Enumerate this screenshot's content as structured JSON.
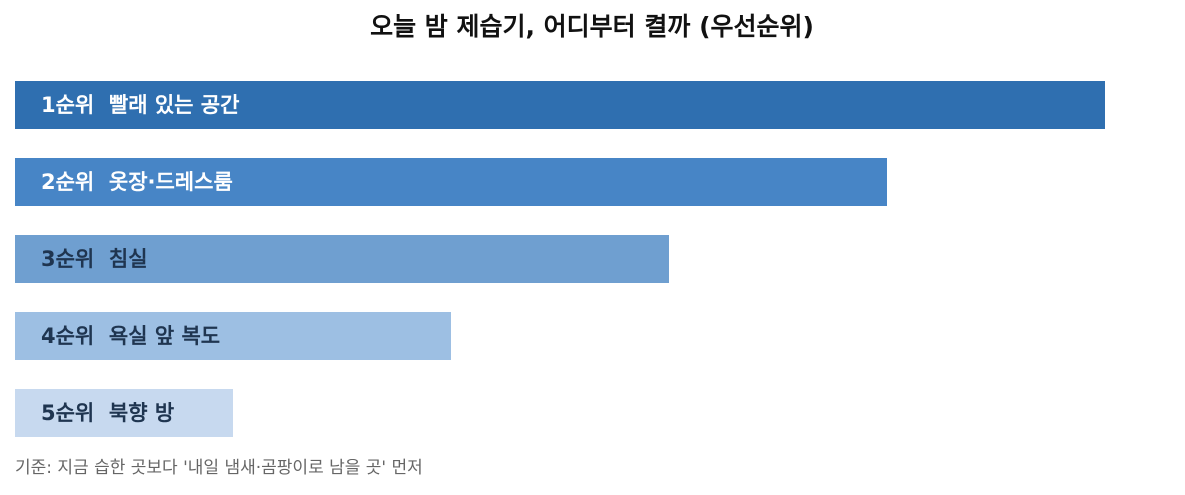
{
  "chart_data": {
    "type": "bar",
    "orientation": "horizontal",
    "title": "오늘 밤 제습기, 어디부터 켤까 (우선순위)",
    "categories": [
      "1순위  빨래 있는 공간",
      "2순위  옷장·드레스룸",
      "3순위  침실",
      "4순위  욕실 앞 복도",
      "5순위  북향 방"
    ],
    "values": [
      5,
      4,
      3,
      2,
      1
    ],
    "colors": [
      "#2f6fb0",
      "#4785c6",
      "#6f9fd0",
      "#9dbfe3",
      "#c7d9ef"
    ],
    "xlim": [
      0,
      5
    ],
    "note": "기준: 지금 습한 곳보다 '내일 냄새·곰팡이로 남을 곳' 먼저"
  }
}
